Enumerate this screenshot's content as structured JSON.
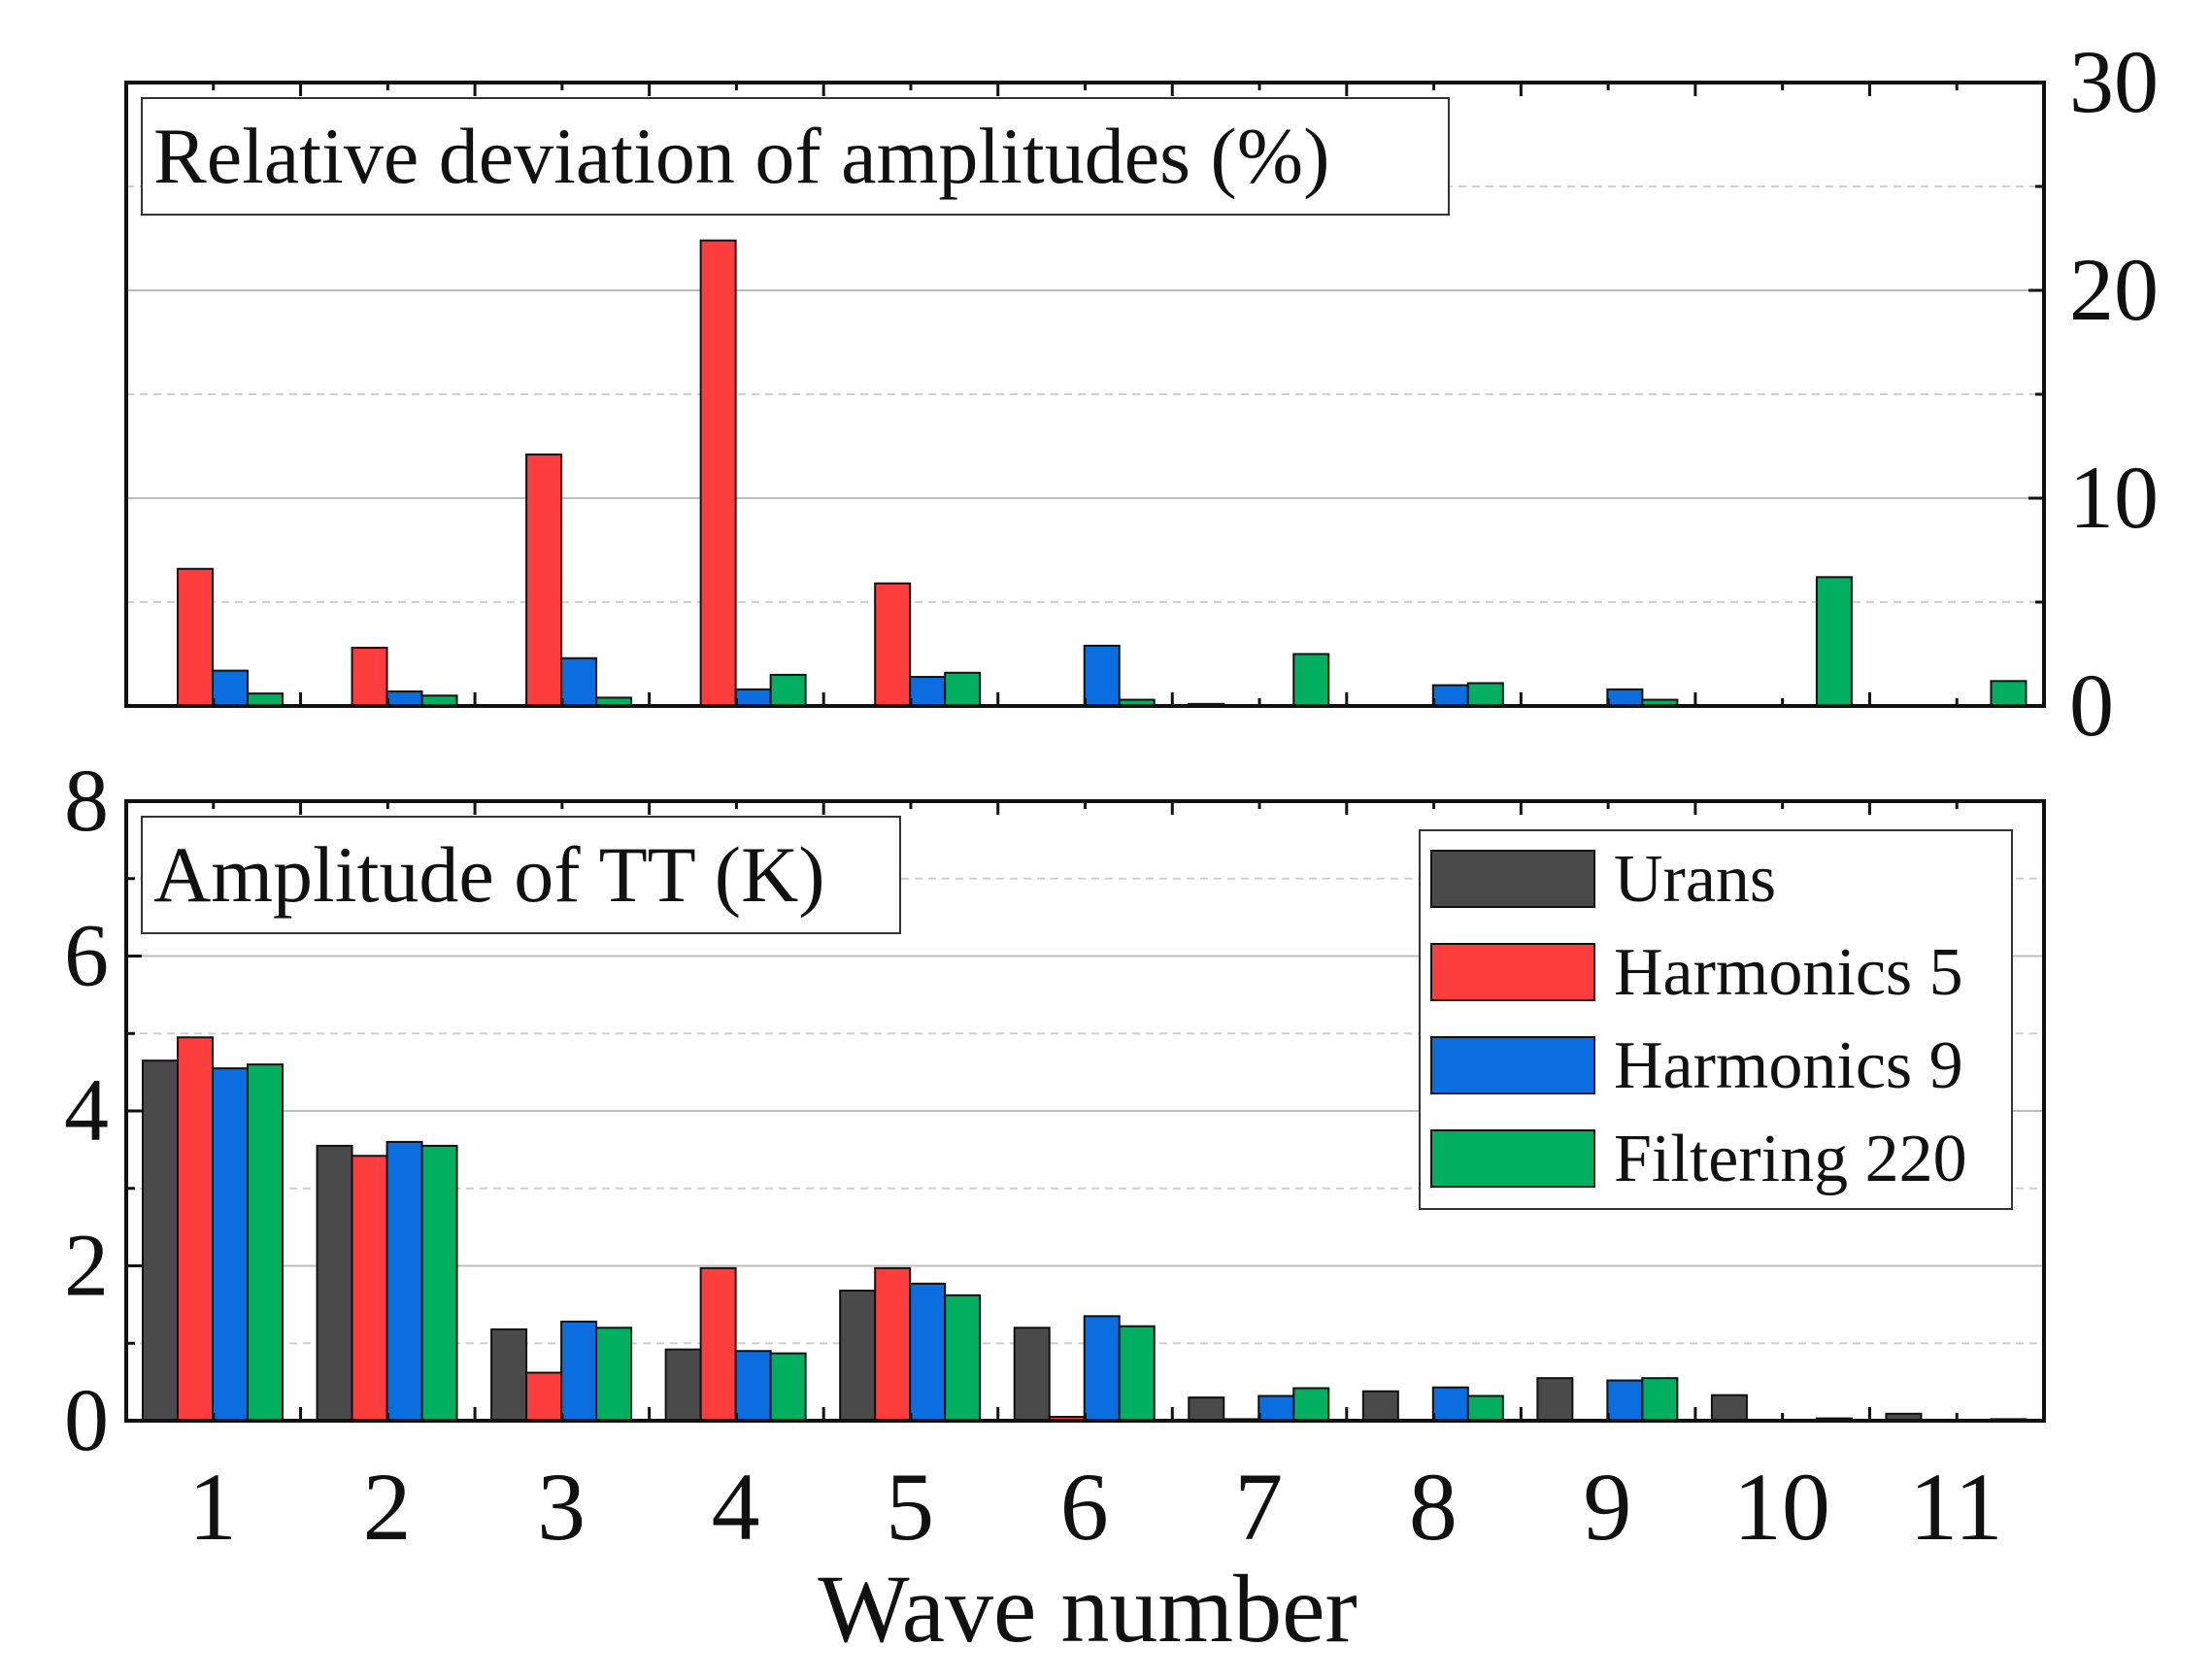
{
  "chart_data": [
    {
      "type": "bar",
      "title": "Relative deviation of amplitudes (%)",
      "xlabel": "",
      "ylabel": "",
      "yaxis_side": "right",
      "ylim": [
        0,
        30
      ],
      "yticks": [
        0,
        10,
        20,
        30
      ],
      "categories": [
        "1",
        "2",
        "3",
        "4",
        "5",
        "6",
        "7",
        "8",
        "9",
        "10",
        "11"
      ],
      "series": [
        {
          "name": "Urans",
          "values": [
            0,
            0,
            0,
            0,
            0,
            0,
            0.1,
            0,
            0,
            0,
            0
          ]
        },
        {
          "name": "Harmonics 5",
          "values": [
            6.6,
            2.8,
            12.1,
            22.4,
            5.9,
            0,
            0,
            0,
            0,
            0,
            0
          ]
        },
        {
          "name": "Harmonics 9",
          "values": [
            1.7,
            0.7,
            2.3,
            0.8,
            1.4,
            2.9,
            0,
            1.0,
            0.8,
            0,
            0
          ]
        },
        {
          "name": "Filtering 220",
          "values": [
            0.6,
            0.5,
            0.4,
            1.5,
            1.6,
            0.3,
            2.5,
            1.1,
            0.3,
            6.2,
            1.2
          ]
        }
      ]
    },
    {
      "type": "bar",
      "title": "Amplitude of TT (K)",
      "xlabel": "Wave number",
      "ylabel": "",
      "ylim": [
        0,
        8
      ],
      "yticks": [
        0,
        2,
        4,
        6,
        8
      ],
      "categories": [
        "1",
        "2",
        "3",
        "4",
        "5",
        "6",
        "7",
        "8",
        "9",
        "10",
        "11"
      ],
      "series": [
        {
          "name": "Urans",
          "values": [
            4.65,
            3.55,
            1.18,
            0.92,
            1.68,
            1.2,
            0.3,
            0.38,
            0.55,
            0.33,
            0.09
          ]
        },
        {
          "name": "Harmonics 5",
          "values": [
            4.95,
            3.42,
            0.62,
            1.97,
            1.97,
            0.05,
            0.02,
            0,
            0,
            0,
            0
          ]
        },
        {
          "name": "Harmonics 9",
          "values": [
            4.55,
            3.6,
            1.28,
            0.9,
            1.77,
            1.35,
            0.32,
            0.43,
            0.52,
            0,
            0
          ]
        },
        {
          "name": "Filtering 220",
          "values": [
            4.6,
            3.55,
            1.2,
            0.87,
            1.62,
            1.22,
            0.42,
            0.32,
            0.55,
            0.03,
            0.02
          ]
        }
      ]
    }
  ],
  "legend": {
    "position": "top-right",
    "items": [
      {
        "label": "Urans",
        "color": "#4a4a4a"
      },
      {
        "label": "Harmonics 5",
        "color": "#ff3d3d"
      },
      {
        "label": "Harmonics 9",
        "color": "#0a6ee0"
      },
      {
        "label": "Filtering 220",
        "color": "#00b060"
      }
    ]
  }
}
